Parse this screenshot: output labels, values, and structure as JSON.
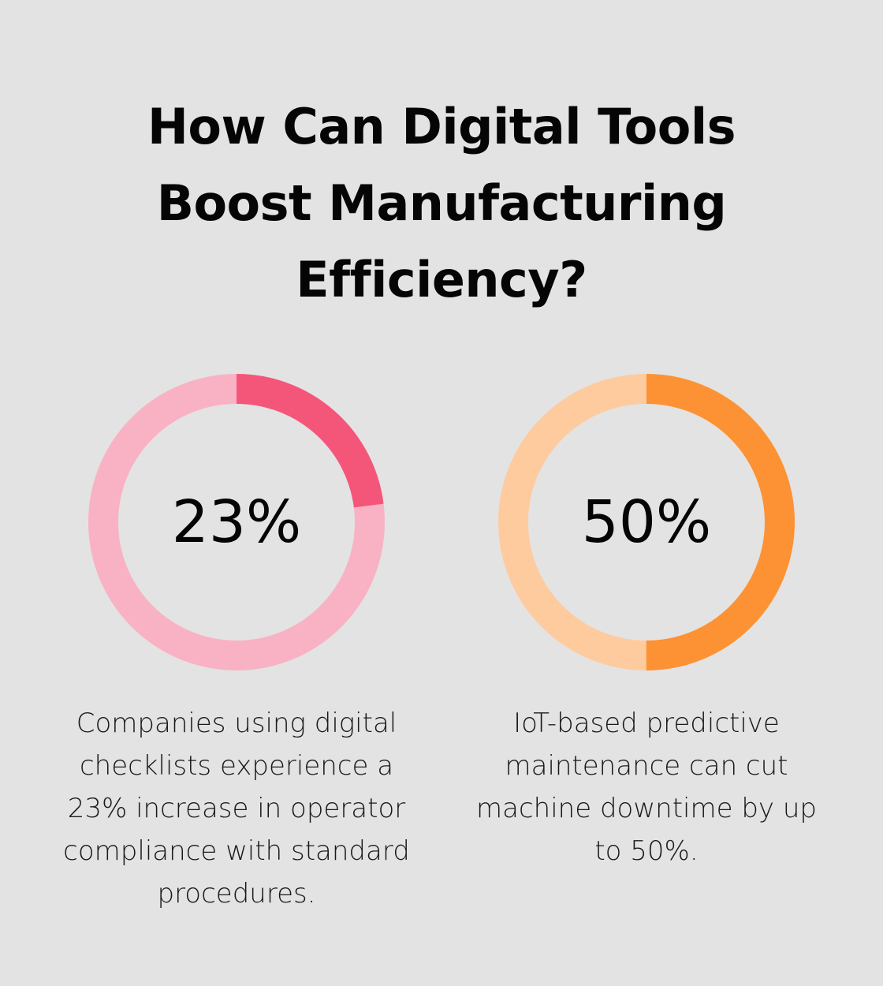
{
  "title_lines": [
    "How Can Digital Tools",
    "Boost Manufacturing",
    "Efficiency?"
  ],
  "chart_data": [
    {
      "type": "pie",
      "subtype": "donut",
      "value": 23,
      "max": 100,
      "label": "23%",
      "colors": {
        "filled": "#f4567a",
        "remainder": "#f9b2c4"
      },
      "caption_lines": [
        "Companies using digital",
        "checklists experience a",
        "23% increase in operator",
        "compliance with standard",
        "procedures."
      ]
    },
    {
      "type": "pie",
      "subtype": "donut",
      "value": 50,
      "max": 100,
      "label": "50%",
      "colors": {
        "filled": "#fd9234",
        "remainder": "#fecb9f"
      },
      "caption_lines": [
        "IoT-based predictive",
        "maintenance can cut",
        "machine downtime by up",
        "to 50%."
      ]
    }
  ],
  "colors": {
    "background": "#e3e3e4",
    "text": "#050505"
  }
}
